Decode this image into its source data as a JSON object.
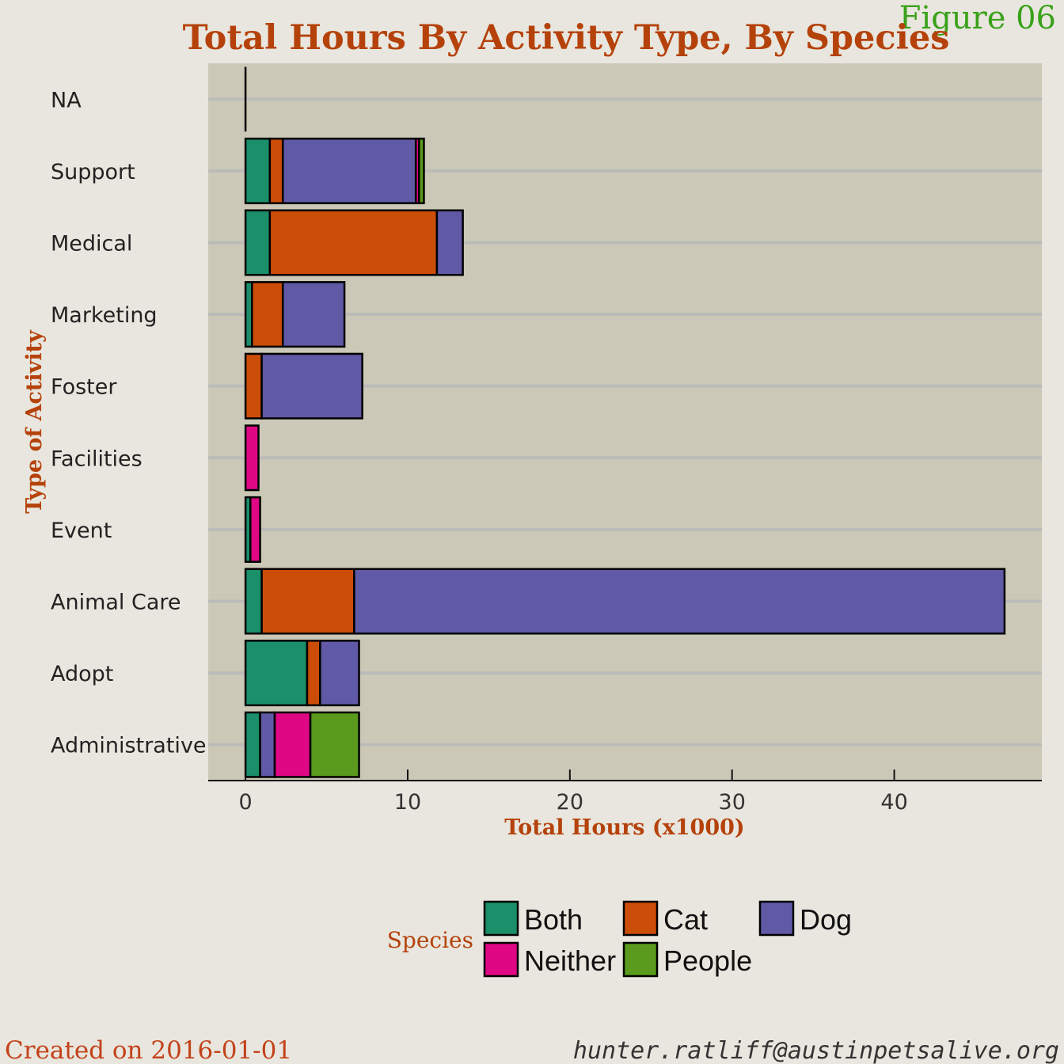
{
  "figure_label": "Figure 06",
  "footer": {
    "created": "Created on 2016-01-01",
    "email": "hunter.ratliff@austinpetsalive.org"
  },
  "legend": {
    "title": "Species"
  },
  "colors": {
    "background": "#e8e6de",
    "panel": "#ccc8b7",
    "gridline": "#bbbbb8",
    "Both": "#1b8f6a",
    "Cat": "#cc4d08",
    "Dog": "#6059a6",
    "Neither": "#e00785",
    "People": "#5a9a1c"
  },
  "chart_data": {
    "type": "bar",
    "orientation": "horizontal",
    "stacked": true,
    "title": "Total Hours By Activity Type, By Species",
    "xlabel": "Total Hours (x1000)",
    "ylabel": "Type of Activity",
    "xlim": [
      -2.3,
      49.1
    ],
    "xticks": [
      0,
      10,
      20,
      30,
      40
    ],
    "grid": "horizontal",
    "legend_position": "bottom",
    "categories": [
      "NA",
      "Support",
      "Medical",
      "Marketing",
      "Foster",
      "Facilities",
      "Event",
      "Animal Care",
      "Adopt",
      "Administrative"
    ],
    "series": [
      {
        "name": "Both",
        "values": [
          0,
          1.5,
          1.5,
          0.4,
          0,
          0,
          0.3,
          1.0,
          3.8,
          0.9
        ]
      },
      {
        "name": "Cat",
        "values": [
          0,
          0.8,
          10.3,
          1.9,
          1.0,
          0,
          0,
          5.7,
          0.8,
          0
        ]
      },
      {
        "name": "Dog",
        "values": [
          0,
          8.2,
          1.6,
          3.8,
          6.2,
          0,
          0,
          40.1,
          2.4,
          0.9
        ]
      },
      {
        "name": "Neither",
        "values": [
          0,
          0.2,
          0,
          0,
          0,
          0.8,
          0.6,
          0,
          0,
          2.2
        ]
      },
      {
        "name": "People",
        "values": [
          0,
          0.3,
          0,
          0,
          0,
          0,
          0,
          0,
          0,
          3.0
        ]
      }
    ]
  }
}
